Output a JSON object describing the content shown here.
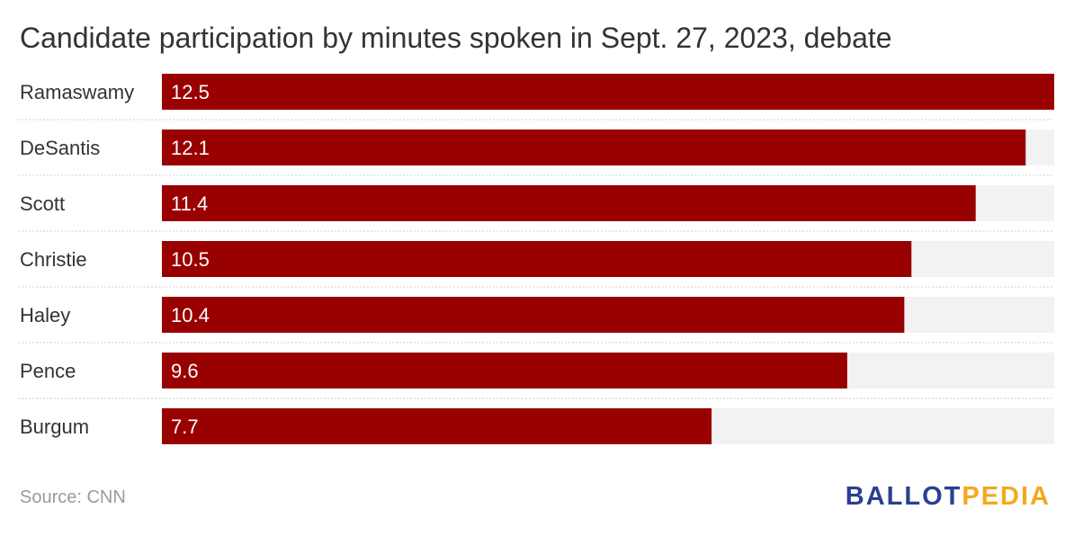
{
  "chart_data": {
    "type": "bar",
    "orientation": "horizontal",
    "title": "Candidate participation by minutes spoken in Sept. 27, 2023, debate",
    "categories": [
      "Ramaswamy",
      "DeSantis",
      "Scott",
      "Christie",
      "Haley",
      "Pence",
      "Burgum"
    ],
    "values": [
      12.5,
      12.1,
      11.4,
      10.5,
      10.4,
      9.6,
      7.7
    ],
    "xlim": [
      0,
      12.5
    ],
    "grid": false,
    "legend": "none",
    "bar_color": "#990000",
    "track_color": "#f2f2f2",
    "label_color": "#ffffff"
  },
  "source": "Source: CNN",
  "logo": {
    "part1": "BALLOT",
    "part2": "PEDIA",
    "color1": "#2b3f91",
    "color2": "#f4a81d"
  }
}
